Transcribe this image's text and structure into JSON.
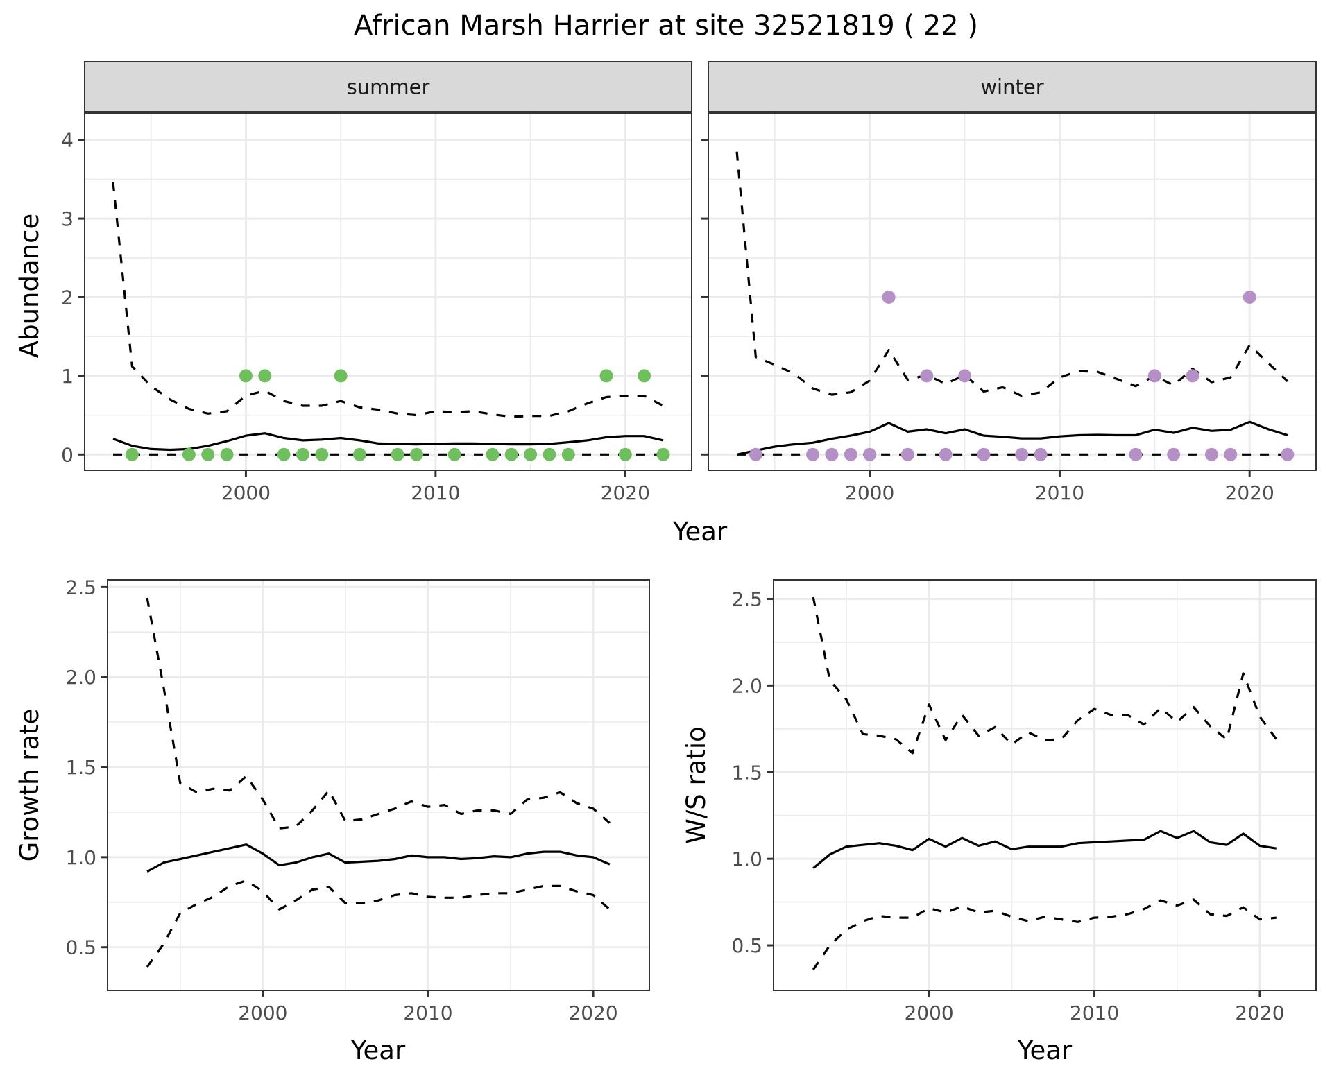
{
  "title": "African Marsh Harrier at site 32521819 ( 22 )",
  "colors": {
    "summer_points": "#70bf5e",
    "winter_points": "#b590c7",
    "strip_fill": "#d9d9d9",
    "grid": "#ebebeb",
    "line": "#000000"
  },
  "chart_data": [
    {
      "id": "abundance-summer",
      "type": "line",
      "facet_label": "summer",
      "xlabel": "Year",
      "ylabel": "Abundance",
      "xlim": [
        1991.5,
        2023.5
      ],
      "ylim": [
        -0.2,
        4.35
      ],
      "x_ticks": [
        2000,
        2010,
        2020
      ],
      "x_tick_labels": [
        "2000",
        "2010",
        "2020"
      ],
      "y_ticks": [
        0,
        1,
        2,
        3,
        4
      ],
      "y_tick_labels": [
        "0",
        "1",
        "2",
        "3",
        "4"
      ],
      "grid": true,
      "x": [
        1993,
        1994,
        1995,
        1996,
        1997,
        1998,
        1999,
        2000,
        2001,
        2002,
        2003,
        2004,
        2005,
        2006,
        2007,
        2008,
        2009,
        2010,
        2011,
        2012,
        2013,
        2014,
        2015,
        2016,
        2017,
        2018,
        2019,
        2020,
        2021,
        2022
      ],
      "series": [
        {
          "name": "upper",
          "style": "dashed",
          "values": [
            3.46,
            1.12,
            0.87,
            0.7,
            0.58,
            0.52,
            0.55,
            0.75,
            0.81,
            0.68,
            0.62,
            0.62,
            0.68,
            0.6,
            0.57,
            0.52,
            0.5,
            0.55,
            0.54,
            0.55,
            0.51,
            0.48,
            0.49,
            0.49,
            0.55,
            0.65,
            0.73,
            0.745,
            0.745,
            0.62
          ]
        },
        {
          "name": "mean",
          "style": "solid",
          "values": [
            0.2,
            0.11,
            0.07,
            0.06,
            0.07,
            0.11,
            0.17,
            0.24,
            0.27,
            0.21,
            0.18,
            0.19,
            0.21,
            0.18,
            0.14,
            0.135,
            0.13,
            0.137,
            0.14,
            0.14,
            0.135,
            0.13,
            0.13,
            0.135,
            0.156,
            0.18,
            0.22,
            0.235,
            0.235,
            0.18
          ]
        },
        {
          "name": "lower",
          "style": "dashed",
          "values": [
            0,
            0,
            0,
            0,
            0,
            0,
            0,
            0,
            0,
            0,
            0,
            0,
            0,
            0,
            0,
            0,
            0,
            0,
            0,
            0,
            0,
            0,
            0,
            0,
            0,
            0,
            0,
            0,
            0,
            0
          ]
        }
      ],
      "points": {
        "x": [
          1994,
          1997,
          1998,
          1999,
          2000,
          2001,
          2002,
          2003,
          2004,
          2005,
          2006,
          2008,
          2009,
          2011,
          2013,
          2014,
          2015,
          2016,
          2017,
          2019,
          2020,
          2021,
          2022
        ],
        "y": [
          0,
          0,
          0,
          0,
          1,
          1,
          0,
          0,
          0,
          1,
          0,
          0,
          0,
          0,
          0,
          0,
          0,
          0,
          0,
          1,
          0,
          1,
          0
        ]
      }
    },
    {
      "id": "abundance-winter",
      "type": "line",
      "facet_label": "winter",
      "xlabel": "Year",
      "ylabel": "Abundance",
      "xlim": [
        1991.5,
        2023.5
      ],
      "ylim": [
        -0.2,
        4.35
      ],
      "x_ticks": [
        2000,
        2010,
        2020
      ],
      "x_tick_labels": [
        "2000",
        "2010",
        "2020"
      ],
      "y_ticks": [
        0,
        1,
        2,
        3,
        4
      ],
      "grid": true,
      "x": [
        1993,
        1994,
        1995,
        1996,
        1997,
        1998,
        1999,
        2000,
        2001,
        2002,
        2003,
        2004,
        2005,
        2006,
        2007,
        2008,
        2009,
        2010,
        2011,
        2012,
        2013,
        2014,
        2015,
        2016,
        2017,
        2018,
        2019,
        2020,
        2021,
        2022
      ],
      "series": [
        {
          "name": "upper",
          "style": "dashed",
          "values": [
            3.85,
            1.24,
            1.14,
            1.03,
            0.84,
            0.76,
            0.79,
            0.94,
            1.33,
            0.95,
            1.01,
            0.9,
            1.01,
            0.8,
            0.855,
            0.745,
            0.79,
            0.98,
            1.06,
            1.05,
            0.96,
            0.87,
            1.0,
            0.88,
            1.09,
            0.92,
            0.98,
            1.39,
            1.16,
            0.93
          ]
        },
        {
          "name": "mean",
          "style": "solid",
          "values": [
            0.0,
            0.05,
            0.1,
            0.13,
            0.15,
            0.2,
            0.24,
            0.29,
            0.4,
            0.29,
            0.32,
            0.27,
            0.32,
            0.24,
            0.225,
            0.205,
            0.205,
            0.23,
            0.245,
            0.25,
            0.245,
            0.245,
            0.315,
            0.275,
            0.34,
            0.3,
            0.315,
            0.415,
            0.32,
            0.245
          ]
        },
        {
          "name": "lower",
          "style": "dashed",
          "values": [
            0,
            0,
            0,
            0,
            0,
            0,
            0,
            0,
            0,
            0,
            0,
            0,
            0,
            0,
            0,
            0,
            0,
            0,
            0,
            0,
            0,
            0,
            0,
            0,
            0,
            0,
            0,
            0,
            0,
            0
          ]
        }
      ],
      "points": {
        "x": [
          1994,
          1997,
          1998,
          1999,
          2000,
          2001,
          2002,
          2003,
          2004,
          2005,
          2006,
          2008,
          2009,
          2014,
          2015,
          2016,
          2017,
          2018,
          2019,
          2020,
          2022
        ],
        "y": [
          0,
          0,
          0,
          0,
          0,
          2,
          0,
          1,
          0,
          1,
          0,
          0,
          0,
          0,
          1,
          0,
          1,
          0,
          0,
          2,
          0
        ]
      }
    },
    {
      "id": "growth-rate",
      "type": "line",
      "xlabel": "Year",
      "ylabel": "Growth rate",
      "xlim": [
        1990.6,
        2023.4
      ],
      "ylim": [
        0.26,
        2.54
      ],
      "x_ticks": [
        2000,
        2010,
        2020
      ],
      "x_tick_labels": [
        "2000",
        "2010",
        "2020"
      ],
      "y_ticks": [
        0.5,
        1.0,
        1.5,
        2.0,
        2.5
      ],
      "y_tick_labels": [
        "0.5",
        "1.0",
        "1.5",
        "2.0",
        "2.5"
      ],
      "grid": true,
      "x": [
        1993,
        1994,
        1995,
        1996,
        1997,
        1998,
        1999,
        2000,
        2001,
        2002,
        2003,
        2004,
        2005,
        2006,
        2007,
        2008,
        2009,
        2010,
        2011,
        2012,
        2013,
        2014,
        2015,
        2016,
        2017,
        2018,
        2019,
        2020,
        2021
      ],
      "series": [
        {
          "name": "upper",
          "style": "dashed",
          "values": [
            2.44,
            1.94,
            1.41,
            1.36,
            1.38,
            1.37,
            1.45,
            1.32,
            1.16,
            1.17,
            1.26,
            1.37,
            1.2,
            1.21,
            1.24,
            1.27,
            1.31,
            1.28,
            1.29,
            1.24,
            1.26,
            1.26,
            1.24,
            1.32,
            1.33,
            1.36,
            1.3,
            1.27,
            1.19
          ]
        },
        {
          "name": "mean",
          "style": "solid",
          "values": [
            0.92,
            0.97,
            0.99,
            1.01,
            1.03,
            1.05,
            1.07,
            1.02,
            0.955,
            0.97,
            1.0,
            1.02,
            0.97,
            0.975,
            0.98,
            0.99,
            1.01,
            1.0,
            1.0,
            0.99,
            0.995,
            1.005,
            1.0,
            1.02,
            1.03,
            1.03,
            1.01,
            1.0,
            0.96
          ]
        },
        {
          "name": "lower",
          "style": "dashed",
          "values": [
            0.39,
            0.52,
            0.69,
            0.74,
            0.78,
            0.84,
            0.87,
            0.81,
            0.71,
            0.76,
            0.82,
            0.835,
            0.745,
            0.745,
            0.76,
            0.79,
            0.8,
            0.78,
            0.775,
            0.775,
            0.79,
            0.8,
            0.8,
            0.82,
            0.84,
            0.84,
            0.81,
            0.79,
            0.71
          ]
        }
      ]
    },
    {
      "id": "ws-ratio",
      "type": "line",
      "xlabel": "Year",
      "ylabel": "W/S ratio",
      "xlim": [
        1990.6,
        2023.4
      ],
      "ylim": [
        0.24,
        2.61
      ],
      "x_ticks": [
        2000,
        2010,
        2020
      ],
      "x_tick_labels": [
        "2000",
        "2010",
        "2020"
      ],
      "y_ticks": [
        0.5,
        1.0,
        1.5,
        2.0,
        2.5
      ],
      "y_tick_labels": [
        "0.5",
        "1.0",
        "1.5",
        "2.0",
        "2.5"
      ],
      "grid": true,
      "x": [
        1993,
        1994,
        1995,
        1996,
        1997,
        1998,
        1999,
        2000,
        2001,
        2002,
        2003,
        2004,
        2005,
        2006,
        2007,
        2008,
        2009,
        2010,
        2011,
        2012,
        2013,
        2014,
        2015,
        2016,
        2017,
        2018,
        2019,
        2020,
        2021
      ],
      "series": [
        {
          "name": "upper",
          "style": "dashed",
          "values": [
            2.51,
            2.03,
            1.92,
            1.72,
            1.71,
            1.69,
            1.61,
            1.89,
            1.685,
            1.83,
            1.71,
            1.76,
            1.66,
            1.73,
            1.685,
            1.69,
            1.8,
            1.865,
            1.83,
            1.83,
            1.775,
            1.87,
            1.79,
            1.875,
            1.765,
            1.69,
            2.07,
            1.82,
            1.69
          ]
        },
        {
          "name": "mean",
          "style": "solid",
          "values": [
            0.945,
            1.025,
            1.07,
            1.08,
            1.09,
            1.075,
            1.05,
            1.115,
            1.07,
            1.12,
            1.075,
            1.1,
            1.055,
            1.07,
            1.07,
            1.07,
            1.09,
            1.095,
            1.1,
            1.105,
            1.11,
            1.16,
            1.12,
            1.16,
            1.095,
            1.08,
            1.145,
            1.075,
            1.06
          ]
        },
        {
          "name": "lower",
          "style": "dashed",
          "values": [
            0.36,
            0.5,
            0.59,
            0.64,
            0.67,
            0.66,
            0.66,
            0.715,
            0.69,
            0.725,
            0.69,
            0.7,
            0.665,
            0.64,
            0.665,
            0.65,
            0.635,
            0.66,
            0.665,
            0.68,
            0.71,
            0.76,
            0.73,
            0.765,
            0.68,
            0.67,
            0.72,
            0.65,
            0.66
          ]
        }
      ]
    }
  ]
}
